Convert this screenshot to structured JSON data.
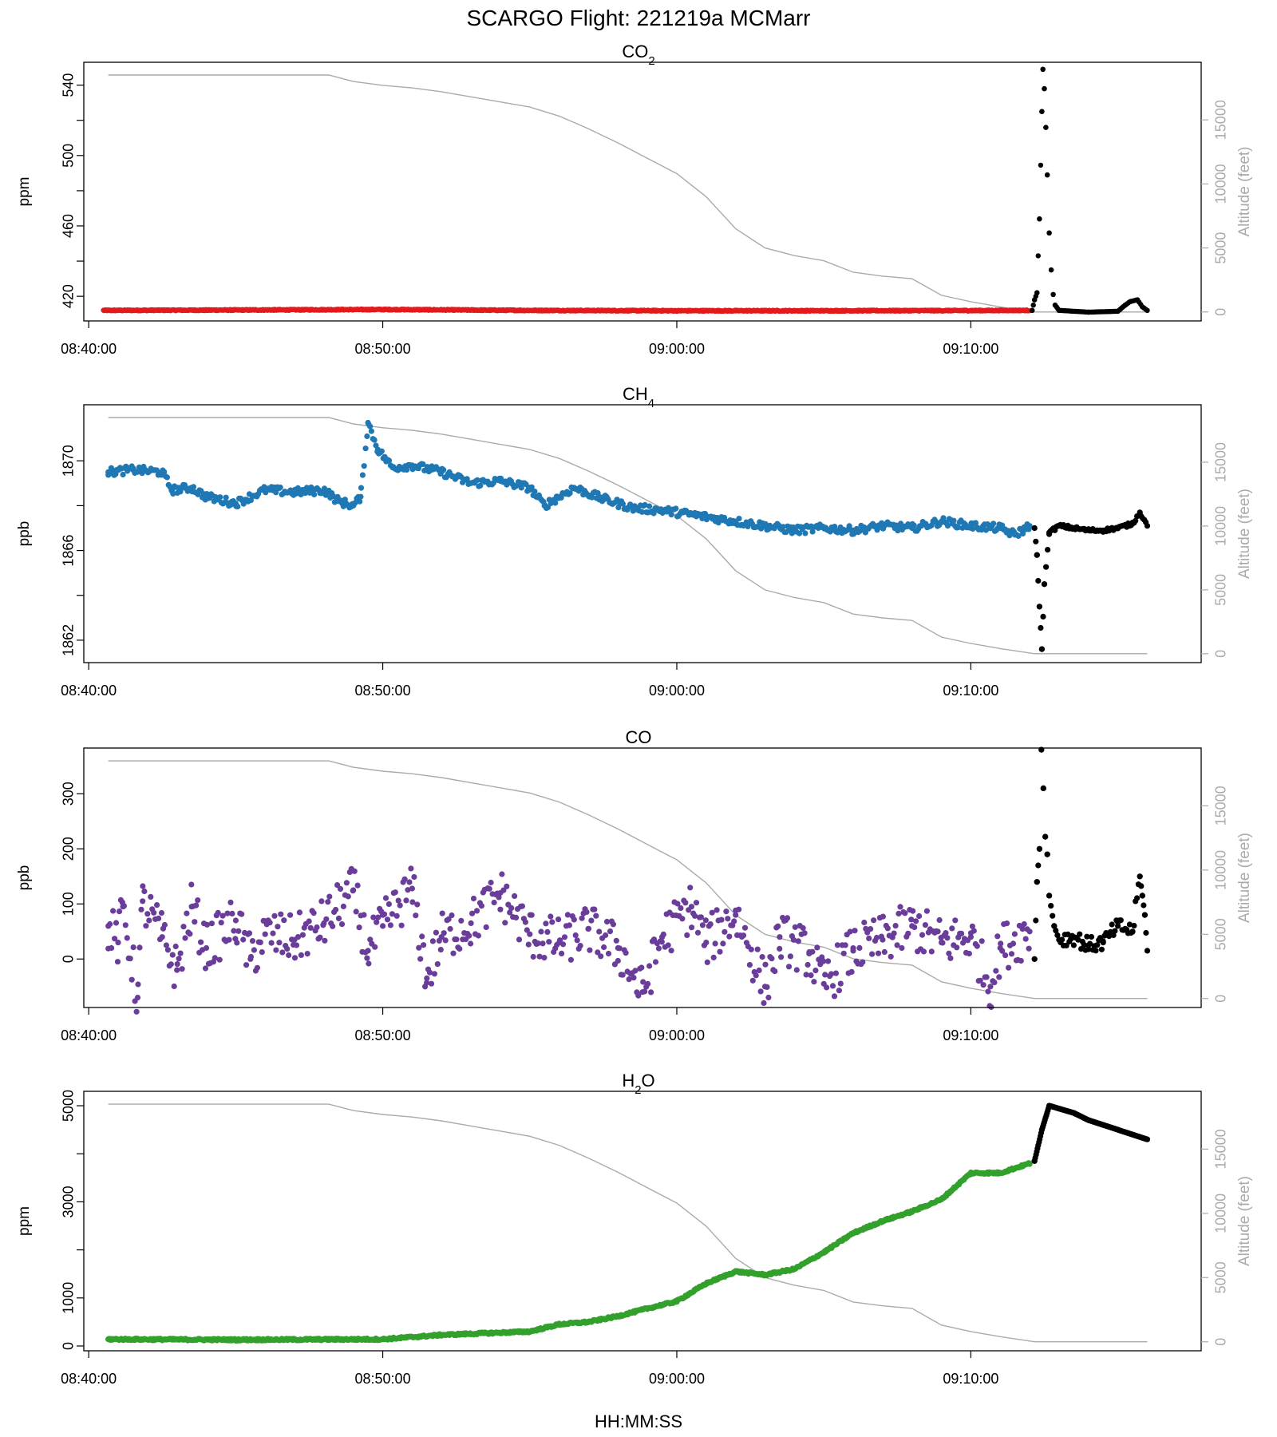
{
  "figure": {
    "title": "SCARGO Flight: 221219a  MCMarr",
    "xlabel": "HH:MM:SS",
    "right_axis_label": "Altitude (feet)"
  },
  "chart_data": [
    {
      "type": "scatter",
      "title_main": "CO",
      "title_sub": "2",
      "ylabel": "ppm",
      "ylim": [
        406,
        553
      ],
      "yticks": [
        420,
        440,
        460,
        480,
        500,
        520,
        540
      ],
      "ytick_labels": [
        "420",
        "",
        "460",
        "",
        "500",
        "",
        "540"
      ],
      "color": "#e31a1c",
      "after_color": "#000000",
      "after_time": "09:12:00",
      "series_main": [
        [
          "08:40:30",
          412
        ],
        [
          "08:45:00",
          412.2
        ],
        [
          "08:50:00",
          412.5
        ],
        [
          "08:55:00",
          412
        ],
        [
          "09:00:00",
          411.8
        ],
        [
          "09:05:00",
          411.8
        ],
        [
          "09:10:00",
          411.9
        ],
        [
          "09:12:00",
          412
        ]
      ],
      "series_after": [
        [
          "09:12:05",
          412
        ],
        [
          "09:12:10",
          418
        ],
        [
          "09:12:15",
          422
        ],
        [
          "09:12:20",
          464
        ],
        [
          "09:12:25",
          525
        ],
        [
          "09:12:27",
          549
        ],
        [
          "09:12:30",
          538
        ],
        [
          "09:12:33",
          516
        ],
        [
          "09:12:36",
          489
        ],
        [
          "09:12:40",
          456
        ],
        [
          "09:12:44",
          435
        ],
        [
          "09:12:48",
          421
        ],
        [
          "09:12:52",
          415
        ],
        [
          "09:13:00",
          412
        ],
        [
          "09:14:00",
          411
        ],
        [
          "09:15:00",
          411.5
        ],
        [
          "09:15:15",
          415
        ],
        [
          "09:15:25",
          417
        ],
        [
          "09:15:40",
          418
        ],
        [
          "09:15:50",
          414
        ],
        [
          "09:16:00",
          412
        ]
      ]
    },
    {
      "type": "scatter",
      "title_main": "CH",
      "title_sub": "4",
      "ylabel": "ppb",
      "ylim": [
        1861,
        1872.5
      ],
      "yticks": [
        1862,
        1864,
        1866,
        1868,
        1870
      ],
      "ytick_labels": [
        "1862",
        "",
        "1866",
        "",
        "1870"
      ],
      "color": "#1f78b4",
      "after_color": "#000000",
      "after_time": "09:12:00",
      "series_main": [
        [
          "08:40:40",
          1869.5
        ],
        [
          "08:41:30",
          1869.6
        ],
        [
          "08:42:30",
          1869.5
        ],
        [
          "08:42:50",
          1868.7
        ],
        [
          "08:43:30",
          1868.8
        ],
        [
          "08:44:00",
          1868.4
        ],
        [
          "08:45:00",
          1868.1
        ],
        [
          "08:46:00",
          1868.7
        ],
        [
          "08:47:00",
          1868.6
        ],
        [
          "08:48:00",
          1868.7
        ],
        [
          "08:48:30",
          1868.2
        ],
        [
          "08:49:00",
          1868.0
        ],
        [
          "08:49:15",
          1868.4
        ],
        [
          "08:49:30",
          1871.7
        ],
        [
          "08:49:50",
          1870.5
        ],
        [
          "08:50:20",
          1869.7
        ],
        [
          "08:51:00",
          1869.8
        ],
        [
          "08:52:00",
          1869.5
        ],
        [
          "08:53:00",
          1869.0
        ],
        [
          "08:54:00",
          1869.1
        ],
        [
          "08:55:00",
          1868.8
        ],
        [
          "08:55:30",
          1868.0
        ],
        [
          "08:56:30",
          1868.8
        ],
        [
          "08:57:30",
          1868.3
        ],
        [
          "08:58:30",
          1867.9
        ],
        [
          "08:59:30",
          1867.8
        ],
        [
          "09:00:30",
          1867.6
        ],
        [
          "09:01:00",
          1867.5
        ],
        [
          "09:02:00",
          1867.3
        ],
        [
          "09:03:00",
          1867.1
        ],
        [
          "09:04:00",
          1866.9
        ],
        [
          "09:05:00",
          1867.0
        ],
        [
          "09:06:00",
          1866.9
        ],
        [
          "09:07:00",
          1867.1
        ],
        [
          "09:08:00",
          1867.0
        ],
        [
          "09:09:00",
          1867.3
        ],
        [
          "09:10:00",
          1867.1
        ],
        [
          "09:11:00",
          1867.0
        ],
        [
          "09:11:30",
          1866.7
        ],
        [
          "09:12:00",
          1867.1
        ]
      ],
      "series_after": [
        [
          "09:12:10",
          1867.0
        ],
        [
          "09:12:15",
          1865.8
        ],
        [
          "09:12:20",
          1863.5
        ],
        [
          "09:12:25",
          1861.6
        ],
        [
          "09:12:30",
          1864.5
        ],
        [
          "09:12:40",
          1866.8
        ],
        [
          "09:13:00",
          1867.1
        ],
        [
          "09:13:30",
          1867.0
        ],
        [
          "09:14:00",
          1866.9
        ],
        [
          "09:14:30",
          1866.9
        ],
        [
          "09:15:00",
          1867.0
        ],
        [
          "09:15:30",
          1867.2
        ],
        [
          "09:15:45",
          1867.7
        ],
        [
          "09:16:00",
          1867.1
        ]
      ]
    },
    {
      "type": "scatter",
      "title_main": "CO",
      "title_sub": "",
      "ylabel": "ppb",
      "ylim": [
        -88,
        383
      ],
      "yticks": [
        0,
        100,
        200,
        300
      ],
      "ytick_labels": [
        "0",
        "100",
        "200",
        "300"
      ],
      "color": "#6a3d9a",
      "after_color": "#000000",
      "after_time": "09:12:00",
      "series_main": [
        [
          "08:40:40",
          60
        ],
        [
          "08:41:00",
          30
        ],
        [
          "08:41:10",
          95
        ],
        [
          "08:41:40",
          -70
        ],
        [
          "08:41:50",
          105
        ],
        [
          "08:42:30",
          40
        ],
        [
          "08:43:00",
          -20
        ],
        [
          "08:43:30",
          95
        ],
        [
          "08:44:00",
          20
        ],
        [
          "08:45:00",
          70
        ],
        [
          "08:45:30",
          0
        ],
        [
          "08:46:00",
          45
        ],
        [
          "08:47:00",
          35
        ],
        [
          "08:48:00",
          65
        ],
        [
          "08:49:00",
          125
        ],
        [
          "08:49:30",
          15
        ],
        [
          "08:50:00",
          60
        ],
        [
          "08:51:00",
          128
        ],
        [
          "08:51:30",
          -35
        ],
        [
          "08:52:00",
          40
        ],
        [
          "08:53:00",
          65
        ],
        [
          "08:54:00",
          120
        ],
        [
          "08:55:00",
          45
        ],
        [
          "08:56:00",
          30
        ],
        [
          "08:57:00",
          55
        ],
        [
          "08:58:00",
          20
        ],
        [
          "08:58:50",
          -60
        ],
        [
          "08:59:30",
          40
        ],
        [
          "09:00:30",
          95
        ],
        [
          "09:01:00",
          30
        ],
        [
          "09:02:00",
          80
        ],
        [
          "09:03:00",
          -50
        ],
        [
          "09:03:30",
          40
        ],
        [
          "09:04:30",
          10
        ],
        [
          "09:05:00",
          -45
        ],
        [
          "09:06:00",
          15
        ],
        [
          "09:07:00",
          35
        ],
        [
          "09:08:00",
          60
        ],
        [
          "09:09:00",
          30
        ],
        [
          "09:10:00",
          40
        ],
        [
          "09:10:40",
          -50
        ],
        [
          "09:11:00",
          20
        ],
        [
          "09:12:00",
          50
        ]
      ],
      "series_after": [
        [
          "09:12:10",
          0
        ],
        [
          "09:12:15",
          140
        ],
        [
          "09:12:20",
          200
        ],
        [
          "09:12:24",
          380
        ],
        [
          "09:12:28",
          310
        ],
        [
          "09:12:32",
          222
        ],
        [
          "09:12:36",
          190
        ],
        [
          "09:12:40",
          115
        ],
        [
          "09:12:50",
          60
        ],
        [
          "09:13:00",
          35
        ],
        [
          "09:13:30",
          40
        ],
        [
          "09:14:00",
          25
        ],
        [
          "09:14:30",
          30
        ],
        [
          "09:15:00",
          60
        ],
        [
          "09:15:30",
          50
        ],
        [
          "09:15:45",
          150
        ],
        [
          "09:15:50",
          115
        ],
        [
          "09:15:55",
          80
        ],
        [
          "09:16:00",
          15
        ]
      ]
    },
    {
      "type": "scatter",
      "title_main": "H",
      "title_sub": "2",
      "title_post": "O",
      "ylabel": "ppm",
      "ylim": [
        -100,
        5300
      ],
      "yticks": [
        0,
        1000,
        2000,
        3000,
        4000,
        5000
      ],
      "ytick_labels": [
        "0",
        "1000",
        "",
        "3000",
        "",
        "5000"
      ],
      "color": "#33a02c",
      "after_color": "#000000",
      "after_time": "09:12:00",
      "series_main": [
        [
          "08:40:40",
          140
        ],
        [
          "08:45:00",
          130
        ],
        [
          "08:50:00",
          140
        ],
        [
          "08:52:00",
          230
        ],
        [
          "08:55:00",
          300
        ],
        [
          "08:56:00",
          450
        ],
        [
          "08:57:00",
          500
        ],
        [
          "08:58:00",
          620
        ],
        [
          "08:59:00",
          780
        ],
        [
          "09:00:00",
          930
        ],
        [
          "09:01:00",
          1300
        ],
        [
          "09:02:00",
          1550
        ],
        [
          "09:03:00",
          1480
        ],
        [
          "09:04:00",
          1600
        ],
        [
          "09:05:00",
          1950
        ],
        [
          "09:06:00",
          2350
        ],
        [
          "09:07:00",
          2600
        ],
        [
          "09:08:00",
          2800
        ],
        [
          "09:09:00",
          3050
        ],
        [
          "09:10:00",
          3600
        ],
        [
          "09:11:00",
          3600
        ],
        [
          "09:12:00",
          3800
        ]
      ],
      "series_after": [
        [
          "09:12:10",
          3850
        ],
        [
          "09:12:25",
          4500
        ],
        [
          "09:12:40",
          5000
        ],
        [
          "09:13:30",
          4850
        ],
        [
          "09:14:00",
          4700
        ],
        [
          "09:15:00",
          4500
        ],
        [
          "09:16:00",
          4300
        ]
      ]
    }
  ],
  "x_axis": {
    "tick_times": [
      "08:40:00",
      "08:50:00",
      "09:00:00",
      "09:10:00"
    ],
    "tick_labels": [
      "08:40:00",
      "08:50:00",
      "09:00:00",
      "09:10:00"
    ],
    "xlim": [
      "08:39:50",
      "09:17:50"
    ]
  },
  "altitude": {
    "color": "#aaaaaa",
    "ylim": [
      -700,
      19500
    ],
    "ticks": [
      0,
      5000,
      10000,
      15000
    ],
    "tick_labels": [
      "0",
      "5000",
      "10000",
      "15000"
    ],
    "profile": [
      [
        "08:40:40",
        18500
      ],
      [
        "08:48:10",
        18500
      ],
      [
        "08:49:00",
        18000
      ],
      [
        "08:50:00",
        17700
      ],
      [
        "08:51:00",
        17500
      ],
      [
        "08:52:00",
        17200
      ],
      [
        "08:53:00",
        16800
      ],
      [
        "08:55:00",
        16000
      ],
      [
        "08:56:00",
        15300
      ],
      [
        "08:57:00",
        14300
      ],
      [
        "08:58:00",
        13200
      ],
      [
        "08:59:00",
        12000
      ],
      [
        "09:00:00",
        10800
      ],
      [
        "09:01:00",
        9000
      ],
      [
        "09:02:00",
        6500
      ],
      [
        "09:03:00",
        5000
      ],
      [
        "09:04:00",
        4400
      ],
      [
        "09:05:00",
        4000
      ],
      [
        "09:06:00",
        3100
      ],
      [
        "09:07:00",
        2800
      ],
      [
        "09:08:00",
        2600
      ],
      [
        "09:09:00",
        1300
      ],
      [
        "09:10:00",
        800
      ],
      [
        "09:11:00",
        400
      ],
      [
        "09:12:10",
        0
      ],
      [
        "09:16:00",
        0
      ]
    ]
  }
}
